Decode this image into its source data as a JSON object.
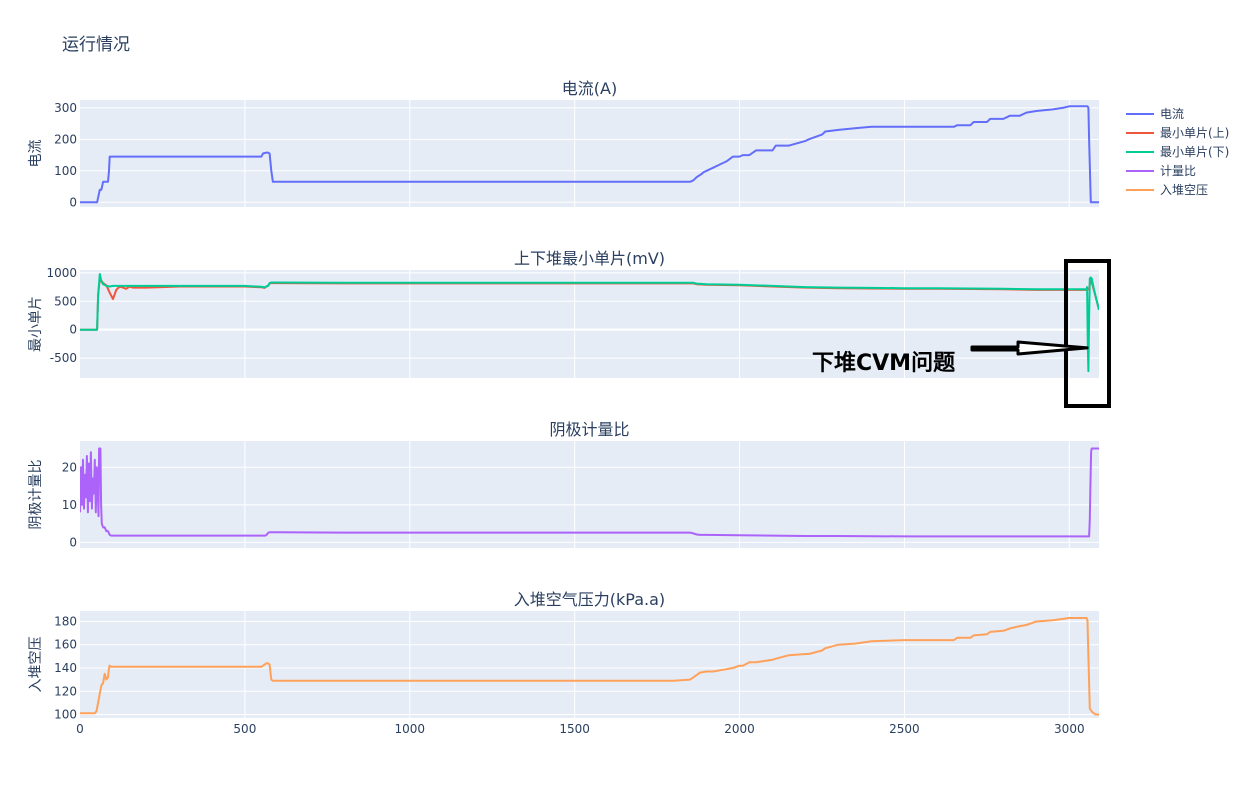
{
  "title": "运行情况",
  "colors": {
    "plot_bg": "#E5ECF6",
    "grid": "#ffffff",
    "text": "#2a3f5f"
  },
  "legend": [
    {
      "name": "电流",
      "color": "#636EFA"
    },
    {
      "name": "最小单片(上)",
      "color": "#EF553B"
    },
    {
      "name": "最小单片(下)",
      "color": "#00CC96"
    },
    {
      "name": "计量比",
      "color": "#AB63FA"
    },
    {
      "name": "入堆空压",
      "color": "#FFA15A"
    }
  ],
  "annotation": {
    "text": "下堆CVM问题",
    "points_to": {
      "x": 3060,
      "y": -320
    }
  },
  "chart_data": [
    {
      "type": "line",
      "title": "电流(A)",
      "ylabel": "电流",
      "xlim": [
        0,
        3090
      ],
      "ylim": [
        -15,
        325
      ],
      "yticks": [
        0,
        100,
        200,
        300
      ],
      "series": [
        {
          "name": "电流",
          "color": "#636EFA",
          "x": [
            0,
            52,
            55,
            60,
            65,
            70,
            80,
            85,
            88,
            90,
            95,
            200,
            300,
            400,
            500,
            550,
            555,
            565,
            570,
            575,
            580,
            585,
            600,
            800,
            1000,
            1200,
            1400,
            1600,
            1800,
            1850,
            1860,
            1870,
            1885,
            1890,
            1900,
            1920,
            1940,
            1960,
            1980,
            2000,
            2010,
            2030,
            2050,
            2100,
            2110,
            2150,
            2200,
            2210,
            2250,
            2260,
            2300,
            2350,
            2400,
            2500,
            2600,
            2650,
            2660,
            2700,
            2710,
            2750,
            2760,
            2800,
            2820,
            2850,
            2870,
            2900,
            2950,
            2980,
            3000,
            3055,
            3058,
            3060,
            3065,
            3090
          ],
          "y": [
            0,
            0,
            15,
            40,
            40,
            65,
            65,
            65,
            100,
            145,
            145,
            145,
            145,
            145,
            145,
            145,
            155,
            158,
            158,
            155,
            100,
            65,
            65,
            65,
            65,
            65,
            65,
            65,
            65,
            65,
            70,
            80,
            90,
            95,
            100,
            110,
            120,
            130,
            145,
            145,
            150,
            150,
            165,
            165,
            180,
            180,
            195,
            200,
            215,
            225,
            230,
            235,
            240,
            240,
            240,
            240,
            245,
            245,
            255,
            255,
            265,
            265,
            275,
            275,
            285,
            290,
            295,
            300,
            305,
            305,
            300,
            200,
            0,
            0
          ]
        }
      ]
    },
    {
      "type": "line",
      "title": "上下堆最小单片(mV)",
      "ylabel": "最小单片",
      "xlim": [
        0,
        3090
      ],
      "ylim": [
        -850,
        1050
      ],
      "yticks": [
        -500,
        0,
        500,
        1000
      ],
      "series": [
        {
          "name": "最小单片(上)",
          "color": "#EF553B",
          "x": [
            0,
            52,
            55,
            60,
            65,
            70,
            80,
            90,
            100,
            110,
            120,
            130,
            140,
            150,
            160,
            200,
            250,
            300,
            400,
            500,
            550,
            560,
            565,
            570,
            575,
            580,
            600,
            800,
            1000,
            1200,
            1400,
            1600,
            1800,
            1860,
            1870,
            1900,
            2000,
            2100,
            2200,
            2300,
            2400,
            2500,
            2600,
            2700,
            2800,
            2900,
            3000,
            3050,
            3060,
            3065,
            3090
          ],
          "y": [
            0,
            0,
            600,
            900,
            860,
            820,
            780,
            650,
            540,
            700,
            760,
            740,
            720,
            760,
            740,
            740,
            750,
            760,
            760,
            760,
            745,
            735,
            760,
            770,
            810,
            820,
            820,
            815,
            815,
            815,
            815,
            815,
            815,
            815,
            800,
            790,
            780,
            760,
            740,
            730,
            725,
            720,
            720,
            715,
            710,
            700,
            700,
            700,
            720,
            900,
            350
          ]
        },
        {
          "name": "最小单片(下)",
          "color": "#00CC96",
          "x": [
            0,
            52,
            55,
            60,
            65,
            70,
            80,
            90,
            100,
            110,
            120,
            200,
            300,
            400,
            500,
            550,
            560,
            565,
            570,
            575,
            580,
            600,
            800,
            1000,
            1200,
            1400,
            1600,
            1800,
            1860,
            1870,
            1900,
            2000,
            2100,
            2200,
            2300,
            2400,
            2500,
            2600,
            2700,
            2800,
            2900,
            3000,
            3050,
            3052,
            3054,
            3056,
            3058,
            3060,
            3062,
            3065,
            3068,
            3075,
            3090
          ],
          "y": [
            0,
            0,
            600,
            980,
            850,
            800,
            770,
            760,
            770,
            770,
            770,
            770,
            770,
            770,
            770,
            755,
            745,
            760,
            770,
            820,
            830,
            830,
            825,
            825,
            825,
            825,
            825,
            825,
            825,
            810,
            800,
            790,
            770,
            750,
            740,
            735,
            730,
            730,
            725,
            720,
            710,
            710,
            710,
            720,
            750,
            -300,
            -730,
            200,
            900,
            920,
            900,
            700,
            350
          ]
        }
      ]
    },
    {
      "type": "line",
      "title": "阴极计量比",
      "ylabel": "阴极计量比",
      "xlim": [
        0,
        3090
      ],
      "ylim": [
        -1.5,
        27
      ],
      "yticks": [
        0,
        10,
        20
      ],
      "series": [
        {
          "name": "计量比",
          "color": "#AB63FA",
          "x": [
            0,
            3,
            6,
            9,
            12,
            15,
            18,
            21,
            24,
            27,
            30,
            33,
            36,
            39,
            42,
            45,
            48,
            51,
            54,
            56,
            58,
            60,
            62,
            64,
            66,
            70,
            75,
            80,
            85,
            90,
            95,
            100,
            300,
            500,
            560,
            565,
            570,
            575,
            600,
            800,
            1000,
            1200,
            1400,
            1600,
            1800,
            1850,
            1860,
            1870,
            1880,
            1900,
            2000,
            2100,
            2200,
            2300,
            2500,
            3000,
            3055,
            3060,
            3062,
            3064,
            3066,
            3068,
            3070,
            3075,
            3090
          ],
          "y": [
            8,
            20,
            10,
            22,
            9,
            18,
            12,
            23,
            8,
            21,
            11,
            24,
            9,
            17,
            13,
            22,
            8,
            20,
            14,
            7,
            25,
            25,
            25,
            10,
            5,
            4,
            4,
            3,
            3,
            2,
            1.8,
            1.8,
            1.8,
            1.8,
            1.8,
            1.9,
            2.5,
            2.7,
            2.7,
            2.6,
            2.6,
            2.6,
            2.6,
            2.6,
            2.6,
            2.6,
            2.4,
            2.1,
            2,
            2,
            1.9,
            1.8,
            1.7,
            1.7,
            1.6,
            1.6,
            1.6,
            1.6,
            6,
            15,
            24,
            25,
            25,
            25,
            25
          ]
        }
      ]
    },
    {
      "type": "line",
      "title": "入堆空气压力(kPa.a)",
      "ylabel": "入堆空压",
      "xlim": [
        0,
        3090
      ],
      "ylim": [
        97,
        189
      ],
      "yticks": [
        100,
        120,
        140,
        160,
        180
      ],
      "series": [
        {
          "name": "入堆空压",
          "color": "#FFA15A",
          "x": [
            0,
            40,
            45,
            50,
            55,
            60,
            65,
            70,
            75,
            80,
            85,
            88,
            90,
            95,
            100,
            200,
            300,
            400,
            500,
            550,
            560,
            565,
            570,
            575,
            580,
            585,
            600,
            800,
            1000,
            1200,
            1400,
            1600,
            1800,
            1850,
            1860,
            1870,
            1880,
            1900,
            1920,
            1940,
            1960,
            1980,
            2000,
            2010,
            2030,
            2050,
            2100,
            2110,
            2150,
            2200,
            2210,
            2250,
            2260,
            2300,
            2350,
            2400,
            2500,
            2600,
            2650,
            2660,
            2700,
            2710,
            2750,
            2760,
            2800,
            2820,
            2850,
            2870,
            2900,
            2950,
            3000,
            3050,
            3052,
            3055,
            3058,
            3062,
            3070,
            3080,
            3090
          ],
          "y": [
            101,
            101,
            101,
            103,
            110,
            118,
            125,
            127,
            135,
            130,
            132,
            140,
            142,
            141,
            141,
            141,
            141,
            141,
            141,
            141,
            143,
            144,
            144,
            143,
            130,
            129,
            129,
            129,
            129,
            129,
            129,
            129,
            129,
            130,
            132,
            134,
            136,
            137,
            137,
            138,
            139,
            140,
            142,
            142,
            145,
            145,
            147,
            148,
            151,
            152,
            152,
            155,
            157,
            160,
            161,
            163,
            164,
            164,
            164,
            166,
            166,
            168,
            169,
            171,
            172,
            174,
            176,
            177,
            180,
            181,
            183,
            183,
            183,
            181,
            150,
            105,
            102,
            100,
            100
          ]
        }
      ]
    }
  ]
}
